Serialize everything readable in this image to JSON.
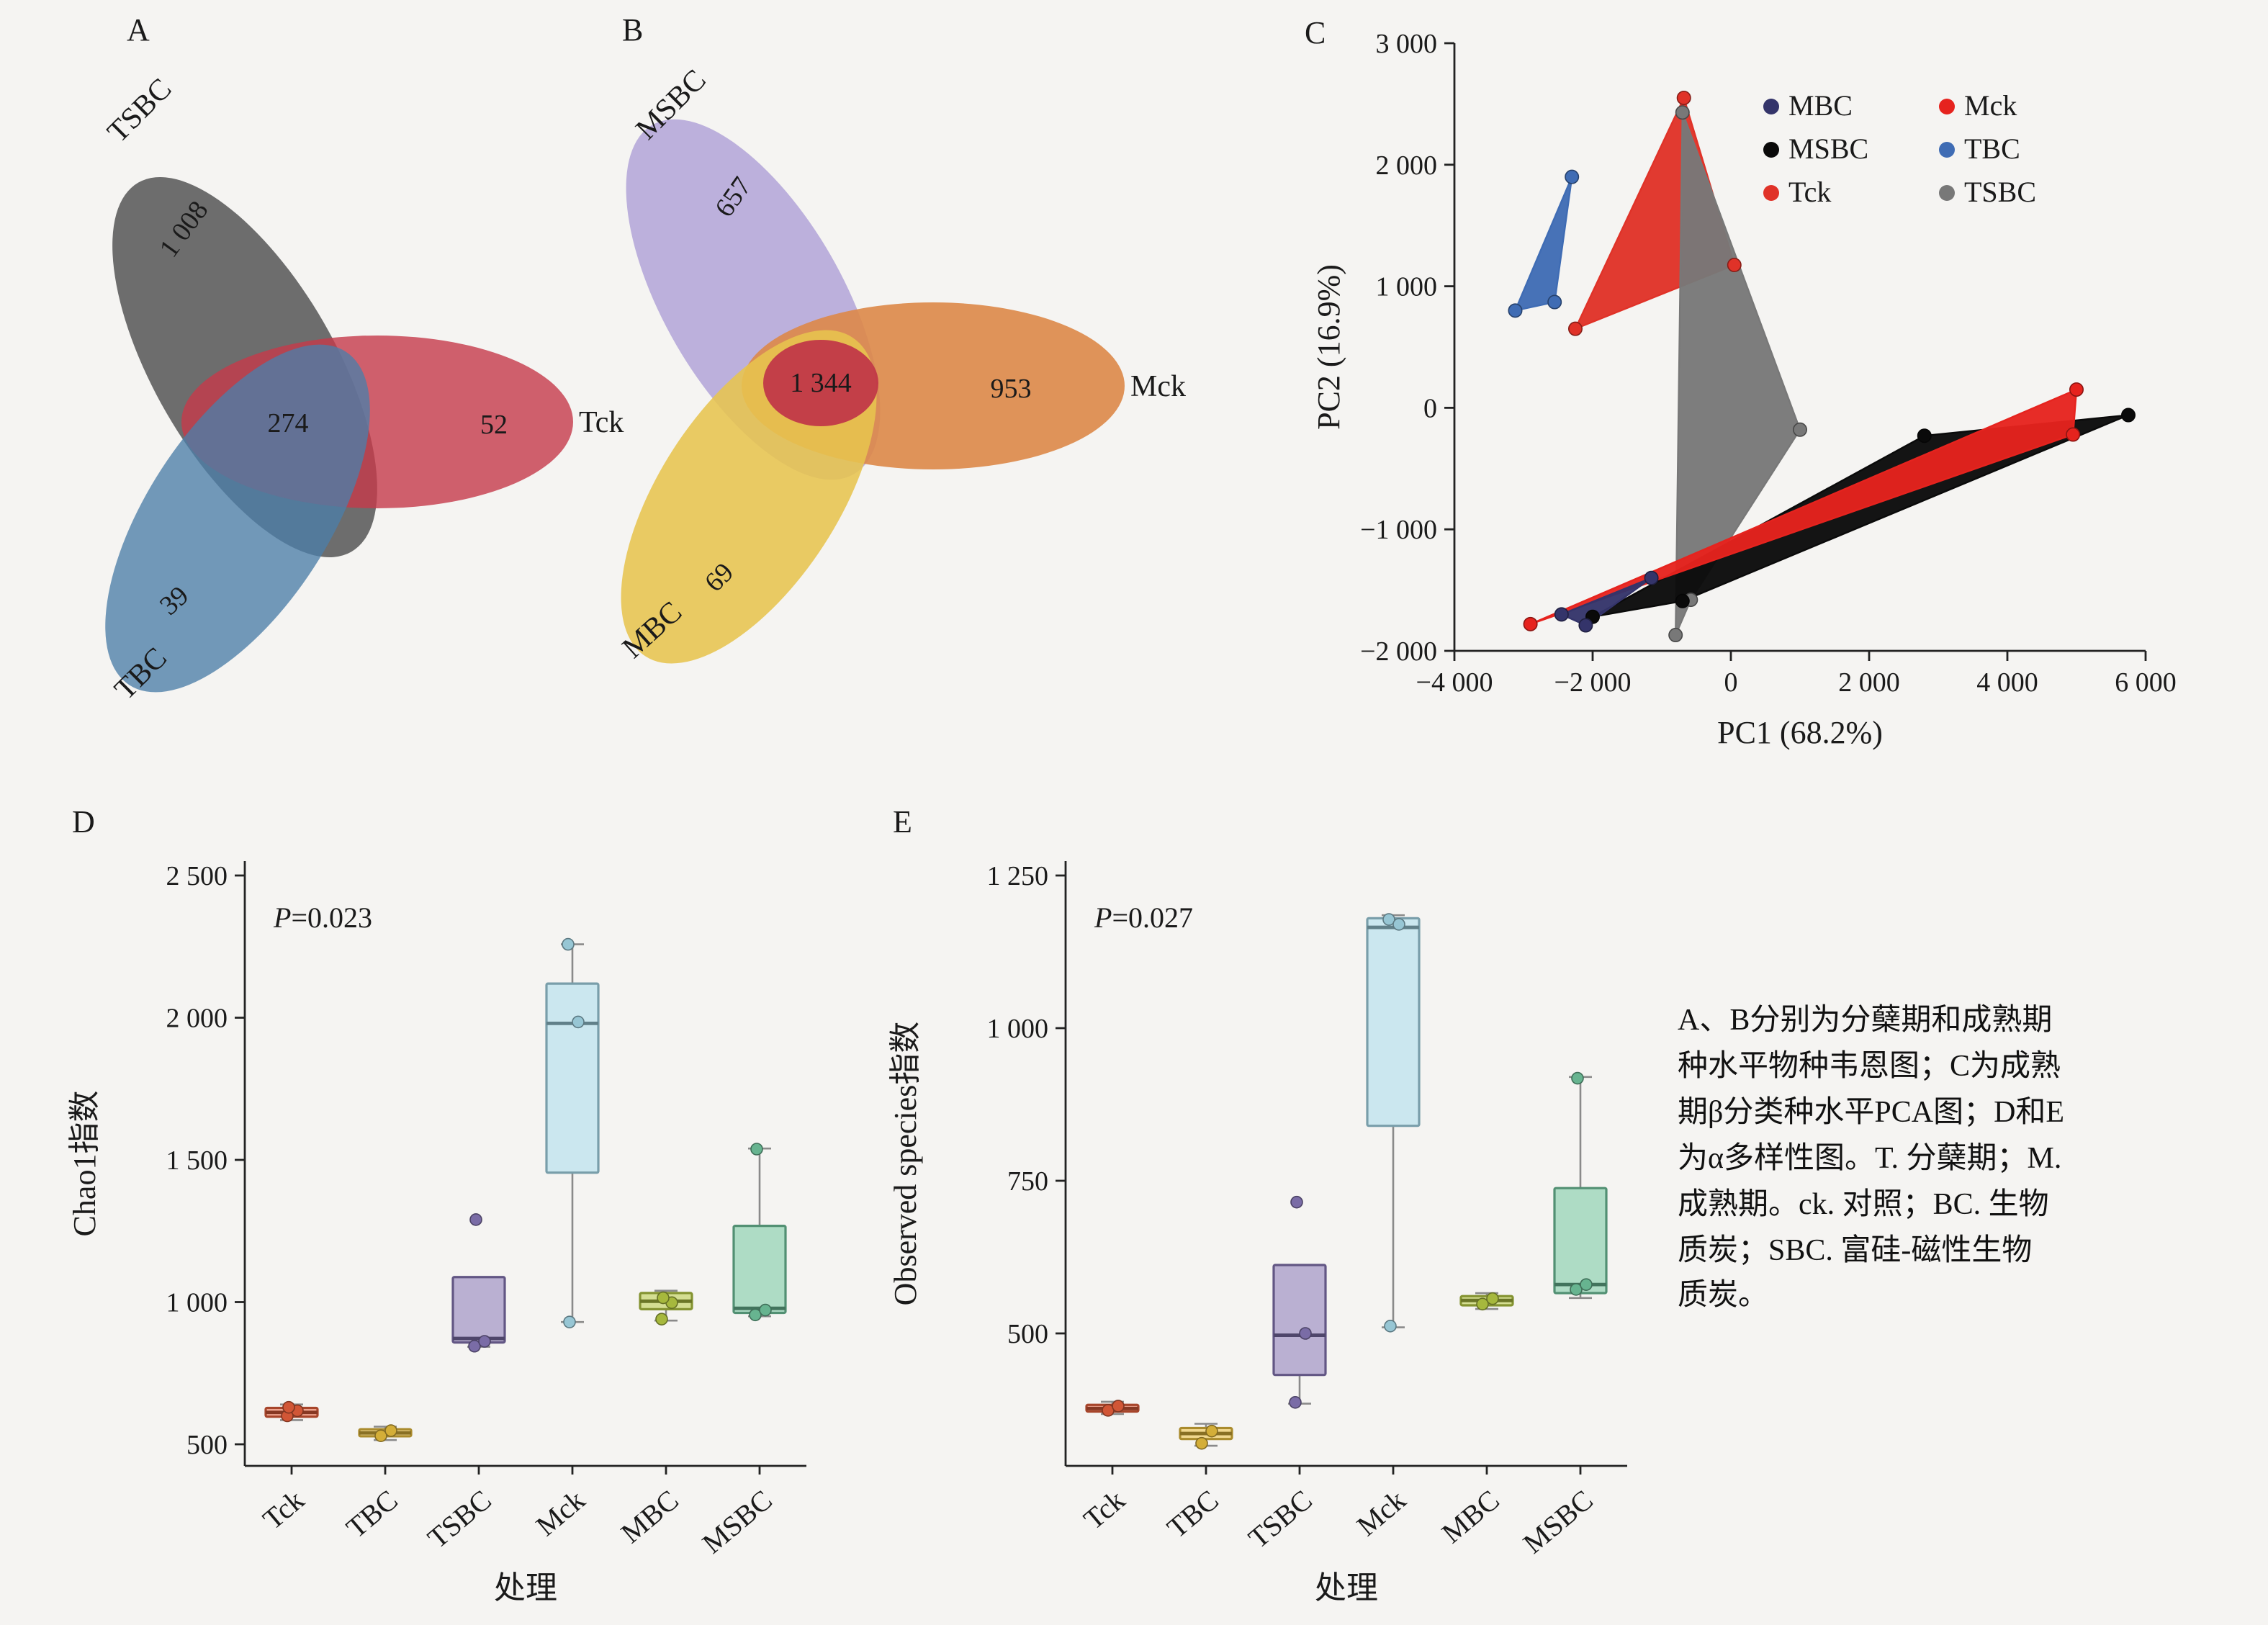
{
  "caption": "A、B分别为分蘖期和成熟期\n种水平物种韦恩图；C为成熟\n期β分类种水平PCA图；D和E\n为α多样性图。T. 分蘖期；M.\n成熟期。ck. 对照；BC. 生物\n质炭；SBC. 富硅-磁性生物\n质炭。",
  "chart_data": [
    {
      "id": "venn_tillering",
      "type": "venn",
      "panel": "A",
      "sets": [
        {
          "label": "TSBC",
          "unique": "1 008",
          "color": "#4f4f4f"
        },
        {
          "label": "Tck",
          "unique": "52",
          "color": "#c63a4a"
        },
        {
          "label": "TBC",
          "unique": "39",
          "color": "#4b7ea8"
        }
      ],
      "intersection_all": "274"
    },
    {
      "id": "venn_maturity",
      "type": "venn",
      "panel": "B",
      "sets": [
        {
          "label": "MSBC",
          "unique": "657",
          "color": "#b4a6d8"
        },
        {
          "label": "Mck",
          "unique": "953",
          "color": "#dd8848"
        },
        {
          "label": "MBC",
          "unique": "69",
          "color": "#e7c44e"
        }
      ],
      "intersection_all": "1 344"
    },
    {
      "id": "pca",
      "type": "scatter",
      "panel": "C",
      "title": "",
      "xlabel": "PC1 (68.2%)",
      "ylabel": "PC2 (16.9%)",
      "xlim": [
        -4000,
        6000
      ],
      "ylim": [
        -2000,
        3000
      ],
      "grid": false,
      "legend_position": "top-right",
      "xticks": [
        {
          "v": -4000,
          "label": "−4 000"
        },
        {
          "v": -2000,
          "label": "−2 000"
        },
        {
          "v": 0,
          "label": "0"
        },
        {
          "v": 2000,
          "label": "2 000"
        },
        {
          "v": 4000,
          "label": "4 000"
        },
        {
          "v": 6000,
          "label": "6 000"
        }
      ],
      "yticks": [
        {
          "v": 3000,
          "label": "3 000"
        },
        {
          "v": 2000,
          "label": "2 000"
        },
        {
          "v": 1000,
          "label": "1 000"
        },
        {
          "v": 0,
          "label": "0"
        },
        {
          "v": -1000,
          "label": "−1 000"
        },
        {
          "v": -2000,
          "label": "−2 000"
        }
      ],
      "legend_order": [
        "MBC",
        "Mck",
        "MSBC",
        "TBC",
        "Tck",
        "TSBC"
      ],
      "draw_order": [
        "Tck",
        "TBC",
        "TSBC",
        "MSBC",
        "Mck",
        "MBC"
      ],
      "groups": [
        {
          "name": "MBC",
          "color": "#34346a",
          "points": [
            [
              -2450,
              -1700
            ],
            [
              -2100,
              -1790
            ],
            [
              -1150,
              -1400
            ]
          ]
        },
        {
          "name": "Mck",
          "color": "#e6231e",
          "points": [
            [
              -2900,
              -1780
            ],
            [
              5000,
              150
            ],
            [
              4950,
              -220
            ]
          ]
        },
        {
          "name": "MSBC",
          "color": "#0a0a0a",
          "points": [
            [
              -2000,
              -1720
            ],
            [
              -700,
              -1590
            ],
            [
              5750,
              -60
            ],
            [
              2800,
              -230
            ]
          ]
        },
        {
          "name": "TBC",
          "color": "#3f6cb4",
          "points": [
            [
              -2300,
              1900
            ],
            [
              -3120,
              800
            ],
            [
              -2550,
              870
            ]
          ]
        },
        {
          "name": "Tck",
          "color": "#e03228",
          "points": [
            [
              -680,
              2550
            ],
            [
              50,
              1175
            ],
            [
              -2250,
              650
            ]
          ]
        },
        {
          "name": "TSBC",
          "color": "#787878",
          "points": [
            [
              -700,
              2430
            ],
            [
              1000,
              -180
            ],
            [
              -580,
              -1580
            ],
            [
              -800,
              -1870
            ]
          ]
        }
      ]
    },
    {
      "id": "chao1",
      "type": "box",
      "panel": "D",
      "p_label": "P=0.023",
      "ylabel": "Chao1指数",
      "xlabel": "处理",
      "yticks": [
        {
          "v": 500,
          "label": "500"
        },
        {
          "v": 1000,
          "label": "1 000"
        },
        {
          "v": 1500,
          "label": "1 500"
        },
        {
          "v": 2000,
          "label": "2 000"
        },
        {
          "v": 2500,
          "label": "2 500"
        }
      ],
      "categories": [
        "Tck",
        "TBC",
        "TSBC",
        "Mck",
        "MBC",
        "MSBC"
      ],
      "boxes": [
        {
          "category": "Tck",
          "color": "#e8603c",
          "low": 585,
          "q1": 597,
          "median": 612,
          "q3": 628,
          "high": 640,
          "points": [
            600,
            618,
            630
          ]
        },
        {
          "category": "TBC",
          "color": "#ecc13e",
          "low": 515,
          "q1": 528,
          "median": 540,
          "q3": 553,
          "high": 562,
          "points": [
            530,
            548
          ]
        },
        {
          "category": "TSBC",
          "color": "#8878b8",
          "low": 843,
          "q1": 858,
          "median": 872,
          "q3": 1088,
          "high": 1088,
          "points": [
            845,
            862,
            1290
          ]
        },
        {
          "category": "Mck",
          "color": "#a8dcec",
          "low": 930,
          "q1": 1455,
          "median": 1980,
          "q3": 2120,
          "high": 2258,
          "points": [
            2258,
            1985,
            930
          ]
        },
        {
          "category": "MBC",
          "color": "#b8cc44",
          "low": 935,
          "q1": 975,
          "median": 1003,
          "q3": 1032,
          "high": 1040,
          "points": [
            940,
            998,
            1015
          ]
        },
        {
          "category": "MSBC",
          "color": "#72c8a0",
          "low": 950,
          "q1": 962,
          "median": 978,
          "q3": 1268,
          "high": 1540,
          "points": [
            955,
            972,
            1538
          ]
        }
      ]
    },
    {
      "id": "observed",
      "type": "box",
      "panel": "E",
      "p_label": "P=0.027",
      "ylabel": "Observed species指数",
      "xlabel": "处理",
      "yticks": [
        {
          "v": 500,
          "label": "500"
        },
        {
          "v": 750,
          "label": "750"
        },
        {
          "v": 1000,
          "label": "1 000"
        },
        {
          "v": 1250,
          "label": "1 250"
        }
      ],
      "categories": [
        "Tck",
        "TBC",
        "TSBC",
        "Mck",
        "MBC",
        "MSBC"
      ],
      "boxes": [
        {
          "category": "Tck",
          "color": "#e8603c",
          "low": 368,
          "q1": 372,
          "median": 377,
          "q3": 383,
          "high": 388,
          "points": [
            374,
            381
          ]
        },
        {
          "category": "TBC",
          "color": "#ecc13e",
          "low": 316,
          "q1": 327,
          "median": 336,
          "q3": 345,
          "high": 352,
          "points": [
            320,
            340
          ]
        },
        {
          "category": "TSBC",
          "color": "#8878b8",
          "low": 385,
          "q1": 432,
          "median": 497,
          "q3": 612,
          "high": 612,
          "points": [
            387,
            500,
            715
          ]
        },
        {
          "category": "Mck",
          "color": "#a8dcec",
          "low": 510,
          "q1": 840,
          "median": 1165,
          "q3": 1180,
          "high": 1185,
          "points": [
            1178,
            1170,
            512
          ]
        },
        {
          "category": "MBC",
          "color": "#b8cc44",
          "low": 540,
          "q1": 546,
          "median": 554,
          "q3": 561,
          "high": 566,
          "points": [
            548,
            557
          ]
        },
        {
          "category": "MSBC",
          "color": "#72c8a0",
          "low": 558,
          "q1": 566,
          "median": 580,
          "q3": 738,
          "high": 920,
          "points": [
            572,
            580,
            918
          ]
        }
      ]
    }
  ]
}
